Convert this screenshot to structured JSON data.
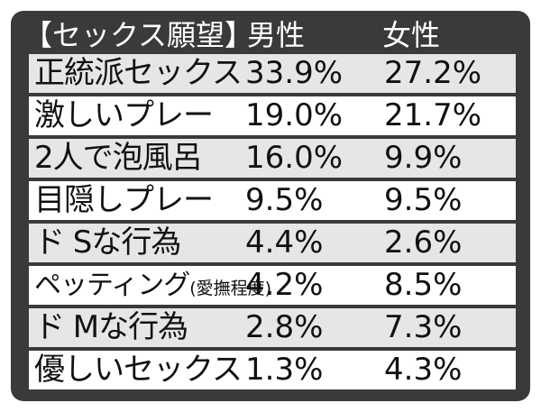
{
  "header": {
    "title": "【セックス願望】",
    "male": "男性",
    "female": "女性"
  },
  "rows": [
    {
      "label": "正統派セックス",
      "label_note": "",
      "male": "33.9%",
      "female": "27.2%"
    },
    {
      "label": "激しいプレー",
      "label_note": "",
      "male": "19.0%",
      "female": "21.7%"
    },
    {
      "label": "2人で泡風呂",
      "label_note": "",
      "male": "16.0%",
      "female": "9.9%"
    },
    {
      "label": "目隠しプレー",
      "label_note": "",
      "male": "9.5%",
      "female": "9.5%"
    },
    {
      "label": "ド Sな行為",
      "label_note": "",
      "male": "4.4%",
      "female": "2.6%"
    },
    {
      "label": "ペッティング",
      "label_note": "(愛撫程度)",
      "male": "4.2%",
      "female": "8.5%"
    },
    {
      "label": "ド Mな行為",
      "label_note": "",
      "male": "2.8%",
      "female": "7.3%"
    },
    {
      "label": "優しいセックス",
      "label_note": "",
      "male": "1.3%",
      "female": "4.3%"
    }
  ],
  "colors": {
    "frame": "#3a3a3a",
    "row_shaded": "#e6e6e6",
    "row_plain": "#ffffff",
    "text": "#111111",
    "header_text": "#ffffff"
  }
}
